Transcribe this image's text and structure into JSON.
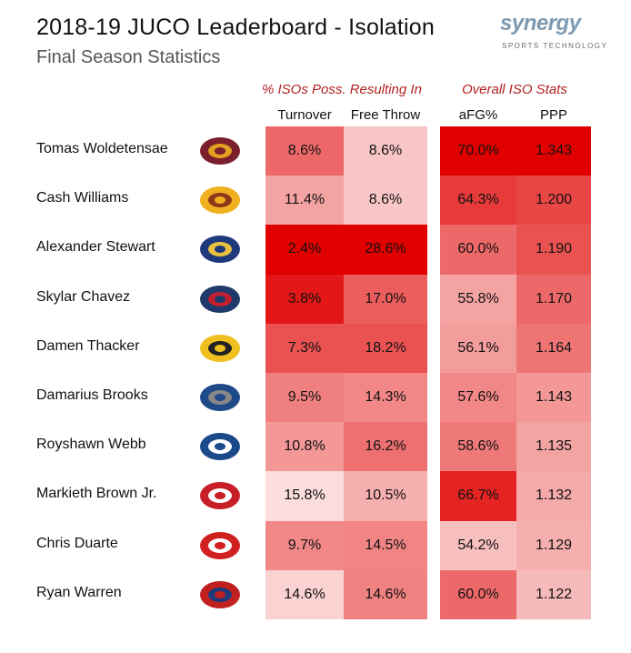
{
  "header": {
    "title": "2018-19 JUCO Leaderboard - Isolation",
    "subtitle": "Final Season Statistics"
  },
  "brand": {
    "word": "synergy",
    "tagline": "SPORTS TECHNOLOGY"
  },
  "chart_data": {
    "type": "table",
    "column_groups": [
      {
        "label": "% ISOs Poss. Resulting In",
        "columns": [
          "Turnover",
          "Free Throw"
        ]
      },
      {
        "label": "Overall ISO Stats",
        "columns": [
          "aFG%",
          "PPP"
        ]
      }
    ],
    "columns": [
      "Turnover",
      "Free Throw",
      "aFG%",
      "PPP"
    ],
    "rows": [
      {
        "player": "Tomas Woldetensae",
        "logo": "hi-logo",
        "values": [
          "8.6%",
          "8.6%",
          "70.0%",
          "1.343"
        ],
        "levels": [
          0.55,
          0.15,
          1.0,
          1.0
        ]
      },
      {
        "player": "Cash Williams",
        "logo": "aw-logo",
        "values": [
          "11.4%",
          "8.6%",
          "64.3%",
          "1.200"
        ],
        "levels": [
          0.3,
          0.15,
          0.75,
          0.7
        ]
      },
      {
        "player": "Alexander Stewart",
        "logo": "trident-logo",
        "values": [
          "2.4%",
          "28.6%",
          "60.0%",
          "1.190"
        ],
        "levels": [
          1.0,
          1.0,
          0.55,
          0.65
        ]
      },
      {
        "player": "Skylar Chavez",
        "logo": "bear-logo",
        "values": [
          "3.8%",
          "17.0%",
          "55.8%",
          "1.170"
        ],
        "levels": [
          0.9,
          0.6,
          0.3,
          0.55
        ]
      },
      {
        "player": "Damen Thacker",
        "logo": "warriors-logo",
        "values": [
          "7.3%",
          "18.2%",
          "56.1%",
          "1.164"
        ],
        "levels": [
          0.65,
          0.65,
          0.33,
          0.5
        ]
      },
      {
        "player": "Damarius Brooks",
        "logo": "colin-logo",
        "values": [
          "9.5%",
          "14.3%",
          "57.6%",
          "1.143"
        ],
        "levels": [
          0.45,
          0.42,
          0.42,
          0.35
        ]
      },
      {
        "player": "Royshawn Webb",
        "logo": "ic-logo",
        "values": [
          "10.8%",
          "16.2%",
          "58.6%",
          "1.135"
        ],
        "levels": [
          0.35,
          0.52,
          0.48,
          0.3
        ]
      },
      {
        "player": "Markieth Brown Jr.",
        "logo": "trojans-logo",
        "values": [
          "15.8%",
          "10.5%",
          "66.7%",
          "1.132"
        ],
        "levels": [
          0.05,
          0.25,
          0.85,
          0.27
        ]
      },
      {
        "player": "Chris Duarte",
        "logo": "raiders-logo",
        "values": [
          "9.7%",
          "14.5%",
          "54.2%",
          "1.129"
        ],
        "levels": [
          0.42,
          0.43,
          0.18,
          0.25
        ]
      },
      {
        "player": "Ryan Warren",
        "logo": "spartan-logo",
        "values": [
          "14.6%",
          "14.6%",
          "60.0%",
          "1.122"
        ],
        "levels": [
          0.1,
          0.44,
          0.55,
          0.2
        ]
      }
    ],
    "color_scale": {
      "low": "#fde9e9",
      "high": "#e00000"
    }
  }
}
